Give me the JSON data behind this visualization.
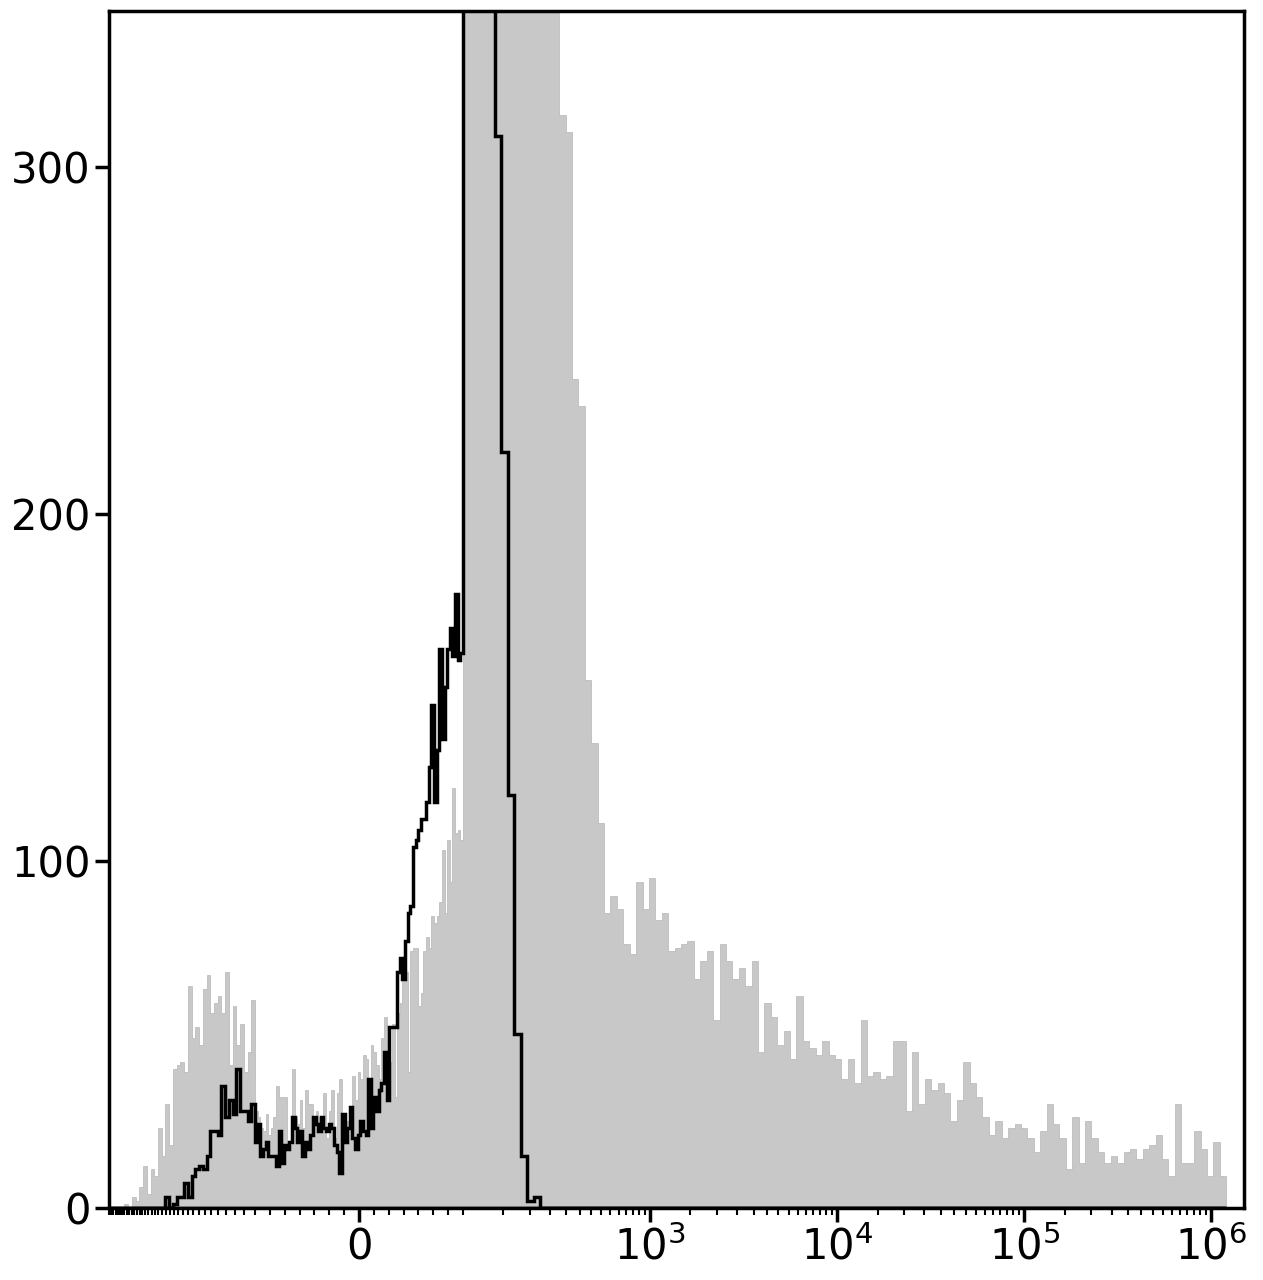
{
  "figsize": [
    12.63,
    12.8
  ],
  "dpi": 100,
  "background_color": "#ffffff",
  "gray_fill_color": "#c8c8c8",
  "gray_edge_color": "#aaaaaa",
  "black_line_color": "#000000",
  "ylim": [
    0,
    345
  ],
  "yticks": [
    0,
    100,
    200,
    300
  ],
  "ytick_fontsize": 30,
  "xtick_fontsize": 30,
  "linthresh": 100,
  "linscale": 0.5,
  "xlim_min": -600,
  "xlim_max": 1500000,
  "spine_linewidth": 2.5,
  "hist_linewidth": 2.5,
  "seed": 42
}
